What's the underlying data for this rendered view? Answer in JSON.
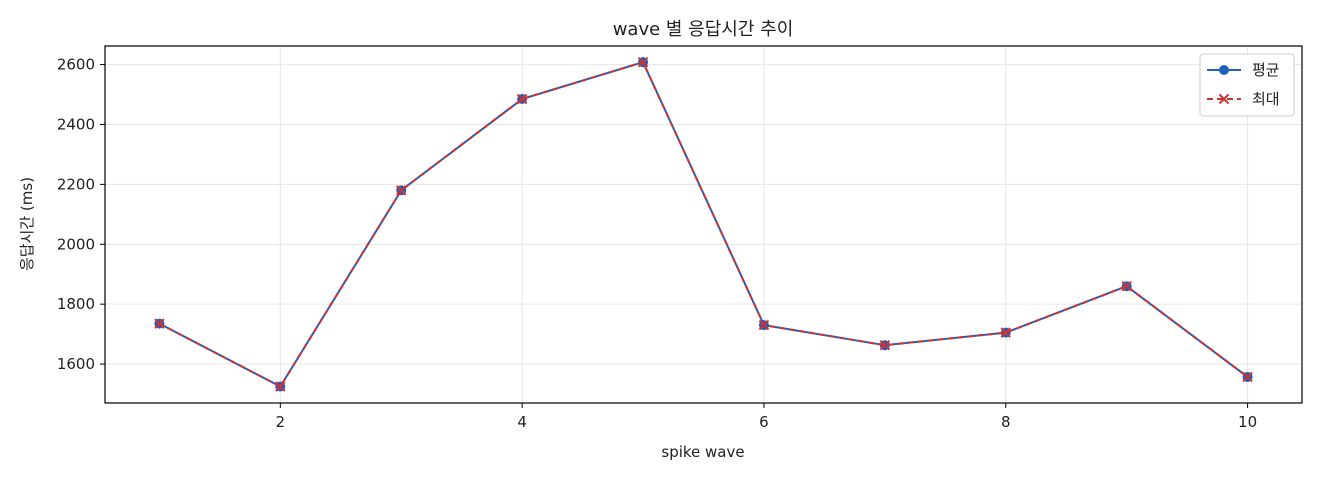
{
  "colors": {
    "mean": "#1f5fbf",
    "max": "#cc3333",
    "grid": "#e6e6e6",
    "axes": "#000000"
  },
  "chart_data": {
    "type": "line",
    "title": "wave 별 응답시간 추이",
    "xlabel": "spike wave",
    "ylabel": "응답시간 (ms)",
    "x": [
      1,
      2,
      3,
      4,
      5,
      6,
      7,
      8,
      9,
      10
    ],
    "xlim": [
      0.55,
      10.45
    ],
    "ylim": [
      1470,
      2662
    ],
    "xticks": [
      2,
      4,
      6,
      8,
      10
    ],
    "yticks": [
      1600,
      1800,
      2000,
      2200,
      2400,
      2600
    ],
    "grid": true,
    "legend_position": "top-right",
    "series": [
      {
        "name": "평균",
        "values": [
          1735,
          1525,
          2180,
          2485,
          2608,
          1730,
          1663,
          1705,
          1860,
          1557
        ],
        "line_style": "solid",
        "marker": "circle",
        "color": "#1f5fbf"
      },
      {
        "name": "최대",
        "values": [
          1735,
          1525,
          2180,
          2485,
          2608,
          1730,
          1663,
          1705,
          1860,
          1557
        ],
        "line_style": "dashed",
        "marker": "x",
        "color": "#cc3333"
      }
    ]
  }
}
